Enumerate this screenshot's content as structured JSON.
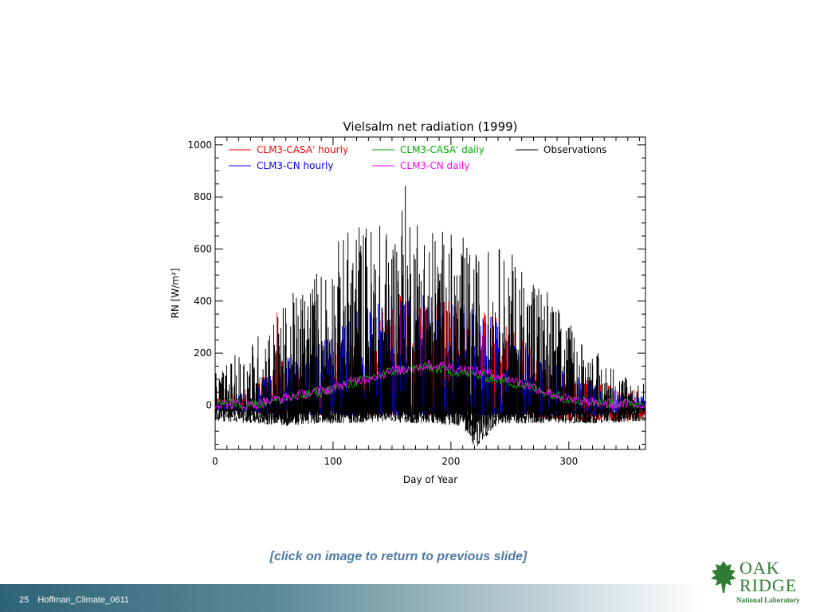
{
  "chart_data": {
    "type": "line",
    "title": "Vielsalm net radiation (1999)",
    "xlabel": "Day of Year",
    "ylabel": "RN [W/m²]",
    "xlim": [
      0,
      365
    ],
    "ylim": [
      -170,
      1030
    ],
    "xticks": [
      0,
      100,
      200,
      300
    ],
    "yticks": [
      0,
      200,
      400,
      600,
      800,
      1000
    ],
    "grid": false,
    "legend_position": "top",
    "series": [
      {
        "name": "CLM3-CASA' hourly",
        "color": "#ff0000",
        "style": "hourly",
        "x": [
          0,
          30,
          50,
          52,
          55,
          60,
          90,
          120,
          150,
          180,
          210,
          240,
          270,
          300,
          330,
          360,
          365
        ],
        "min": [
          -20,
          -25,
          -40,
          -50,
          -45,
          -40,
          -40,
          -40,
          -40,
          -40,
          -40,
          -40,
          -40,
          -60,
          -60,
          -60,
          -30
        ],
        "max": [
          40,
          70,
          180,
          410,
          200,
          120,
          200,
          300,
          420,
          430,
          420,
          330,
          220,
          120,
          80,
          60,
          40
        ]
      },
      {
        "name": "CLM3-CASA' daily",
        "color": "#00aa00",
        "style": "daily",
        "x": [
          0,
          30,
          60,
          90,
          120,
          150,
          180,
          210,
          240,
          270,
          300,
          330,
          365
        ],
        "y": [
          10,
          5,
          25,
          50,
          90,
          130,
          145,
          125,
          100,
          65,
          25,
          10,
          5
        ]
      },
      {
        "name": "Observations",
        "color": "#000000",
        "style": "hourly",
        "x": [
          0,
          30,
          60,
          90,
          120,
          150,
          160,
          180,
          210,
          220,
          240,
          270,
          300,
          330,
          365
        ],
        "min": [
          -60,
          -70,
          -80,
          -70,
          -70,
          -60,
          -70,
          -70,
          -80,
          -170,
          -70,
          -70,
          -70,
          -70,
          -60
        ],
        "max": [
          120,
          250,
          400,
          560,
          730,
          700,
          870,
          720,
          650,
          600,
          620,
          540,
          320,
          180,
          80
        ]
      },
      {
        "name": "CLM3-CN hourly",
        "color": "#0000ff",
        "style": "hourly",
        "x": [
          0,
          30,
          60,
          90,
          120,
          150,
          180,
          210,
          240,
          270,
          300,
          330,
          365
        ],
        "min": [
          -20,
          -30,
          -40,
          -40,
          -40,
          -40,
          -40,
          -40,
          -40,
          -40,
          -40,
          -40,
          -20
        ],
        "max": [
          30,
          60,
          180,
          260,
          360,
          440,
          440,
          420,
          320,
          220,
          130,
          70,
          40
        ]
      },
      {
        "name": "CLM3-CN daily",
        "color": "#ff00ff",
        "style": "daily",
        "x": [
          0,
          30,
          60,
          90,
          120,
          150,
          180,
          210,
          240,
          270,
          300,
          330,
          365
        ],
        "y": [
          5,
          0,
          30,
          55,
          95,
          130,
          155,
          140,
          115,
          70,
          20,
          5,
          0
        ]
      }
    ]
  },
  "footer": {
    "slide_number": "25",
    "label": "Hoffman_Climate_0611"
  },
  "link_text": "[click on image to return to previous slide]",
  "logo": {
    "line1": "OAK",
    "line2": "RIDGE",
    "line3": "National Laboratory",
    "color": "#2e7d32",
    "icon": "oak-leaf-icon"
  }
}
